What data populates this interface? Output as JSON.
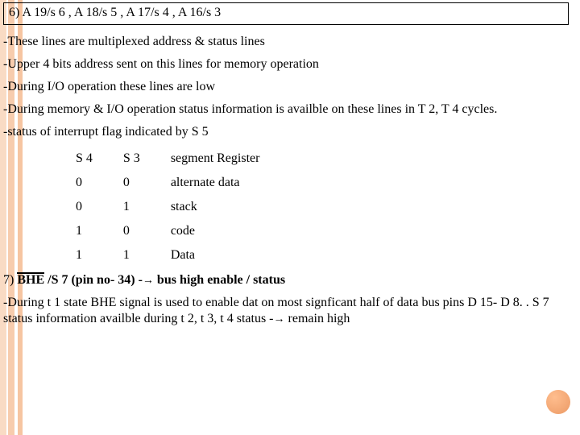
{
  "heading6": "6) A 19/s 6 , A 18/s 5 , A 17/s 4 , A 16/s 3",
  "bullets6": [
    "-These lines are multiplexed address & status lines",
    "-Upper 4 bits address sent on this lines for memory operation",
    "-During I/O operation these lines are low",
    "-During memory & I/O operation status information is availble on these lines in T 2, T 4 cycles.",
    "-status of interrupt flag indicated by S 5"
  ],
  "table": {
    "headers": [
      "S 4",
      "S 3",
      "segment Register"
    ],
    "rows": [
      [
        "0",
        "0",
        "alternate data"
      ],
      [
        "0",
        "1",
        "stack"
      ],
      [
        "1",
        "0",
        "code"
      ],
      [
        "1",
        "1",
        "Data"
      ]
    ]
  },
  "heading7_pre": "7) ",
  "heading7_bhe": "BHE",
  "heading7_post": " /S 7 (pin no- 34) -",
  "heading7_tail": " bus high enable / status",
  "bullet7_pre": "-During t 1 state BHE signal  is used to enable dat on most signficant half of data bus pins  D 15- D 8. . S 7 status information availble during t 2, t 3, t 4 status -",
  "bullet7_tail": " remain high",
  "colors": {
    "stripe": "#f4b78a",
    "bubble_inner": "#ffb27a",
    "bubble_outer": "#e8884a",
    "text": "#000000",
    "bg": "#ffffff"
  }
}
